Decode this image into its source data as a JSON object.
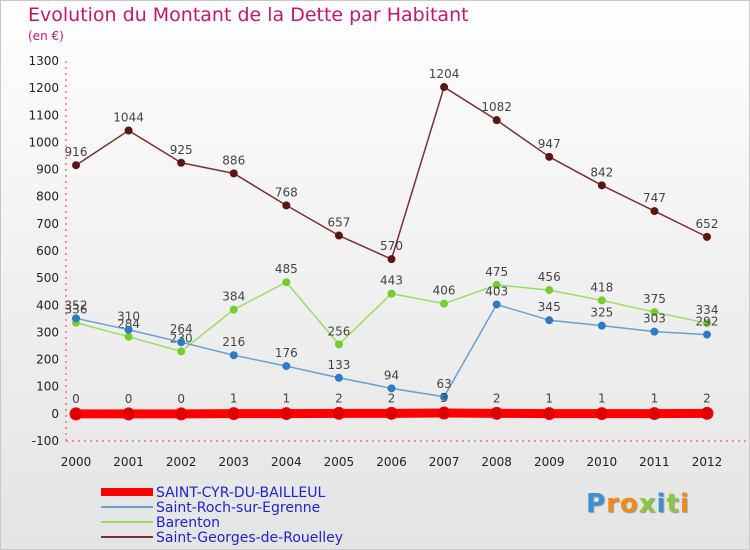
{
  "header": {
    "title": "Evolution du Montant de la Dette par Habitant",
    "subtitle": "(en €)"
  },
  "logo": {
    "text": "Proxiti",
    "letter_colors": [
      "#3b8fd4",
      "#f08a1c",
      "#f08a1c",
      "#8cc63f",
      "#3b8fd4",
      "#8cc63f",
      "#f08a1c"
    ]
  },
  "chart_data": {
    "type": "line",
    "x": [
      "2000",
      "2001",
      "2002",
      "2003",
      "2004",
      "2005",
      "2006",
      "2007",
      "2008",
      "2009",
      "2010",
      "2011",
      "2012"
    ],
    "ylim": [
      -100,
      1300
    ],
    "yticks": [
      -100,
      0,
      100,
      200,
      300,
      400,
      500,
      600,
      700,
      800,
      900,
      1000,
      1100,
      1200,
      1300
    ],
    "grid": false,
    "legend_position": "bottom-left",
    "series": [
      {
        "name": "SAINT-CYR-DU-BAILLEUL",
        "color": "#ff0000",
        "marker_color": "#dd0000",
        "values": [
          0,
          0,
          0,
          1,
          1,
          2,
          2,
          3,
          2,
          1,
          1,
          1,
          2
        ],
        "labels": [
          "0",
          "0",
          "0",
          "1",
          "1",
          "2",
          "2",
          "3",
          "2",
          "1",
          "1",
          "1",
          "2"
        ]
      },
      {
        "name": "Saint-Roch-sur-Egrenne",
        "color": "#6a9fcf",
        "marker_color": "#2e7bc4",
        "values": [
          352,
          310,
          264,
          216,
          176,
          133,
          94,
          63,
          403,
          345,
          325,
          303,
          292
        ],
        "labels": [
          "352",
          "310",
          "264",
          "216",
          "176",
          "133",
          "94",
          "63",
          "403",
          "345",
          "325",
          "303",
          "292"
        ]
      },
      {
        "name": "Barenton",
        "color": "#99dd66",
        "marker_color": "#77cc33",
        "values": [
          336,
          284,
          230,
          384,
          485,
          256,
          443,
          406,
          475,
          456,
          418,
          375,
          334
        ],
        "labels": [
          "336",
          "284",
          "230",
          "384",
          "485",
          "256",
          "443",
          "406",
          "475",
          "456",
          "418",
          "375",
          "334"
        ]
      },
      {
        "name": "Saint-Georges-de-Rouelley",
        "color": "#7a3030",
        "marker_color": "#5a1515",
        "values": [
          916,
          1044,
          925,
          886,
          768,
          657,
          570,
          1204,
          1082,
          947,
          842,
          747,
          652
        ],
        "labels": [
          "916",
          "1044",
          "925",
          "886",
          "768",
          "657",
          "570",
          "1204",
          "1082",
          "947",
          "842",
          "747",
          "652"
        ]
      }
    ]
  }
}
